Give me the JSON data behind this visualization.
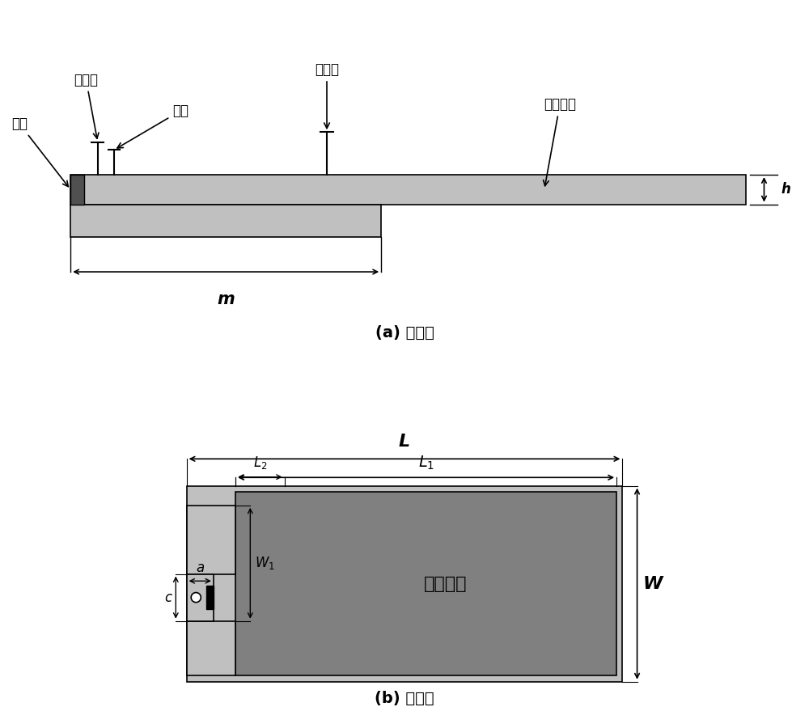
{
  "bg_color": "#ffffff",
  "title_a": "(a) 主视图",
  "title_b": "(b) 俧视图",
  "labels": {
    "short_pin": "短路针",
    "ground_pin": "接地针",
    "dielectric": "介质基板",
    "via": "过孔",
    "chip": "芯片",
    "m": "m",
    "h": "h",
    "L": "L",
    "L1": "$L_1$",
    "L2": "$L_2$",
    "a": "a",
    "c": "c",
    "W1": "$W_1$",
    "W": "W",
    "patch": "辐射贴片"
  },
  "colors": {
    "light_gray": "#c0c0c0",
    "medium_gray": "#808080",
    "dark_gray": "#505050",
    "black": "#000000",
    "white": "#ffffff"
  }
}
